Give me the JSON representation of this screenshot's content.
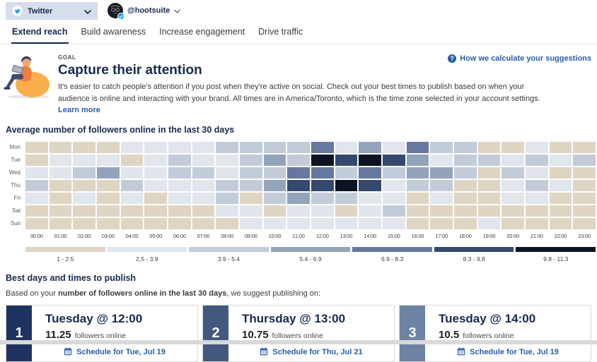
{
  "header": {
    "network_selector": {
      "label": "Twitter"
    },
    "account": {
      "handle": "@hootsuite"
    }
  },
  "tabs": [
    {
      "label": "Extend reach",
      "active": true
    },
    {
      "label": "Build awareness",
      "active": false
    },
    {
      "label": "Increase engagement",
      "active": false
    },
    {
      "label": "Drive traffic",
      "active": false
    }
  ],
  "goal": {
    "eyebrow": "GOAL",
    "title": "Capture their attention",
    "description": "It's easier to catch people's attention if you post when they're active on social. Check out your best times to publish based on when your audience is online and interacting with your brand. All times are in America/Toronto, which is the time zone selected in your account settings.",
    "learn_more_label": "Learn more",
    "help_link_label": "How we calculate your suggestions"
  },
  "chart_data": {
    "type": "heatmap",
    "title": "Average number of followers online in the last 30 days",
    "rows": [
      "Mon",
      "Tue",
      "Wed",
      "Thu",
      "Fri",
      "Sat",
      "Sun"
    ],
    "columns": [
      "00:00",
      "01:00",
      "02:00",
      "03:00",
      "04:00",
      "05:00",
      "06:00",
      "07:00",
      "08:00",
      "09:00",
      "10:00",
      "11:00",
      "12:00",
      "13:00",
      "14:00",
      "15:00",
      "16:00",
      "17:00",
      "18:00",
      "19:00",
      "20:00",
      "21:00",
      "22:00",
      "23:00"
    ],
    "legend": {
      "labels": [
        "1 - 2.5",
        "2.5 - 3.9",
        "3.9 - 5.4",
        "5.4 - 6.9",
        "6.9 - 8.3",
        "8.3 - 9.8",
        "9.8 - 11.3"
      ],
      "colors": [
        "#ded5c3",
        "#e1e5ec",
        "#c2ccd9",
        "#93a3ba",
        "#66789d",
        "#35496e",
        "#0c1322"
      ]
    },
    "bins": [
      [
        1,
        1,
        1,
        1,
        2,
        2,
        2,
        2,
        3,
        3,
        3,
        3,
        5,
        2,
        4,
        2,
        5,
        3,
        3,
        1,
        1,
        2,
        1,
        1
      ],
      [
        1,
        2,
        2,
        2,
        1,
        2,
        3,
        2,
        2,
        3,
        4,
        3,
        7,
        6,
        7,
        6,
        4,
        2,
        3,
        3,
        2,
        3,
        2,
        3
      ],
      [
        2,
        2,
        3,
        4,
        2,
        2,
        3,
        3,
        2,
        3,
        3,
        5,
        5,
        3,
        5,
        3,
        4,
        4,
        3,
        1,
        3,
        2,
        1,
        1
      ],
      [
        3,
        1,
        1,
        1,
        3,
        2,
        2,
        2,
        3,
        3,
        4,
        6,
        6,
        7,
        6,
        2,
        3,
        3,
        1,
        1,
        2,
        3,
        2,
        1
      ],
      [
        2,
        1,
        2,
        1,
        2,
        1,
        2,
        2,
        3,
        1,
        3,
        4,
        3,
        3,
        2,
        2,
        1,
        2,
        1,
        1,
        2,
        2,
        1,
        1
      ],
      [
        1,
        1,
        1,
        1,
        1,
        1,
        1,
        1,
        2,
        2,
        1,
        2,
        2,
        1,
        2,
        3,
        1,
        1,
        1,
        1,
        1,
        1,
        1,
        1
      ],
      [
        1,
        1,
        1,
        1,
        1,
        1,
        1,
        1,
        1,
        2,
        2,
        2,
        2,
        2,
        2,
        2,
        1,
        1,
        1,
        2,
        1,
        1,
        1,
        1
      ]
    ]
  },
  "suggestions": {
    "heading": "Best days and times to publish",
    "intro_prefix": "Based on your ",
    "intro_bold": "number of followers online in the last 30 days",
    "intro_suffix": ", we suggest publishing on:",
    "cards": [
      {
        "rank": "1",
        "rank_color": "#1f3360",
        "title": "Tuesday @ 12:00",
        "value": "11.25",
        "value_label": "followers online",
        "button_label": "Schedule for Tue, Jul 19"
      },
      {
        "rank": "2",
        "rank_color": "#42587e",
        "title": "Thursday @ 13:00",
        "value": "10.75",
        "value_label": "followers online",
        "button_label": "Schedule for Thu, Jul 21"
      },
      {
        "rank": "3",
        "rank_color": "#6e82a4",
        "title": "Tuesday @ 14:00",
        "value": "10.5",
        "value_label": "followers online",
        "button_label": "Schedule for Tue, Jul 19"
      }
    ]
  },
  "colors": {
    "accent_blue": "#2a5ca8",
    "dark_navy_text": "#16294d",
    "twitter_blue": "#1d9bf0",
    "selector_bg": "#d6deeb"
  }
}
